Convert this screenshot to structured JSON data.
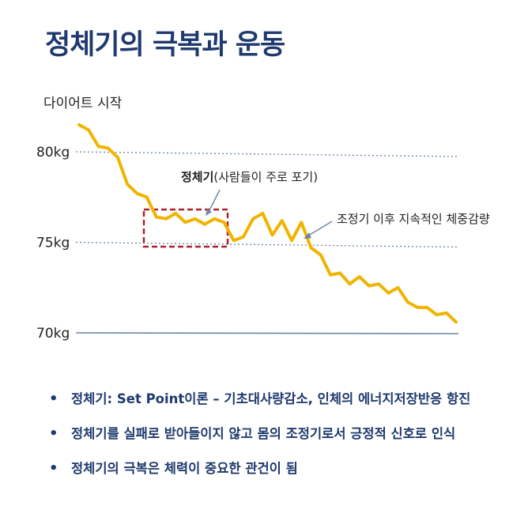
{
  "title": "정체기의 극복과 운동",
  "chart_data": {
    "type": "line",
    "ylim": [
      70,
      80
    ],
    "y_ticks": [
      {
        "label": "80kg",
        "value": 80
      },
      {
        "label": "75kg",
        "value": 75
      },
      {
        "label": "70kg",
        "value": 70
      }
    ],
    "start_label": "다이어트 시작",
    "series": [
      {
        "values": [
          81.5,
          81.2,
          80.3,
          80.2,
          79.7,
          78.2,
          77.7,
          77.5,
          76.4,
          76.3,
          76.6,
          76.1,
          76.3,
          76.0,
          76.3,
          76.1,
          75.1,
          75.3,
          76.3,
          76.6,
          75.4,
          76.2,
          75.1,
          76.1,
          74.7,
          74.3,
          73.2,
          73.3,
          72.7,
          73.1,
          72.6,
          72.7,
          72.2,
          72.5,
          71.7,
          71.4,
          71.4,
          71.0,
          71.1,
          70.6
        ],
        "color": "#f0b400"
      }
    ],
    "annotations": {
      "plateau_bold": "정체기",
      "plateau_rest": "(사람들이 주로 포기)",
      "adjust": "조정기 이후 지속적인 체중감량"
    }
  },
  "bullets": [
    "정체기: Set Point이론 – 기초대사량감소, 인체의 에너지저장반응 항진",
    " 정체기를 실패로 받아들이지 않고 몸의 조정기로서 긍정적 신호로 인식",
    "정체기의 극복은 체력이 중요한 관건이 됨"
  ],
  "bullet_marker": "•",
  "colors": {
    "title": "#1f3a6e",
    "line": "#f0b400",
    "box": "#b0202a",
    "grid": "#6e86a6"
  }
}
